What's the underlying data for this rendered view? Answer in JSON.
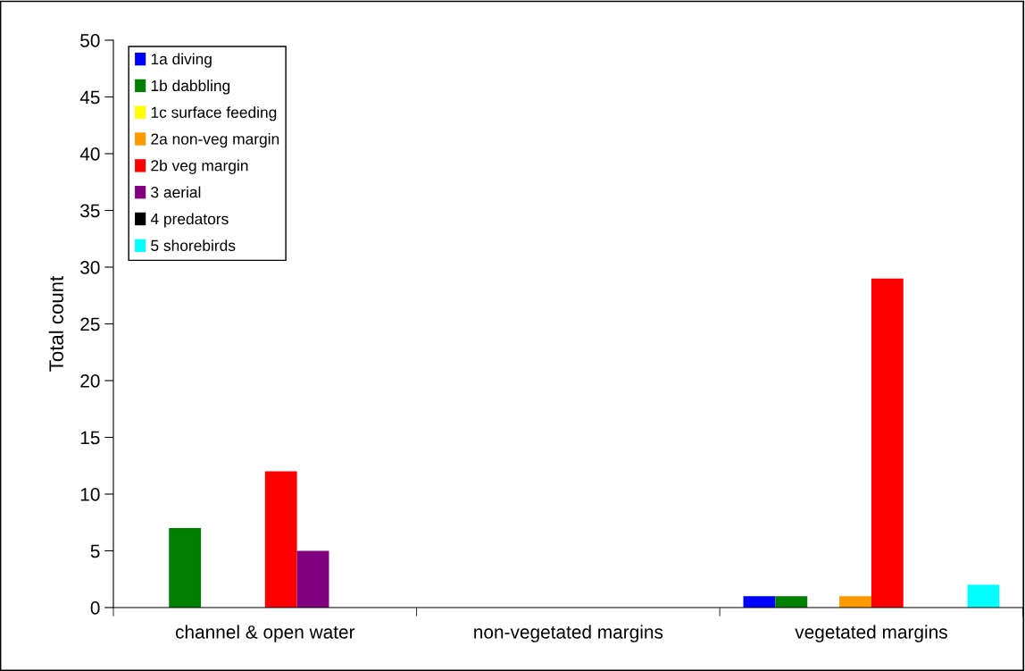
{
  "chart_data": {
    "type": "bar",
    "ylabel": "Total count",
    "categories": [
      "channel & open water",
      "non-vegetated margins",
      "vegetated margins"
    ],
    "series": [
      {
        "name": "1a diving",
        "color": "#0000ff",
        "values": [
          0,
          0,
          1
        ]
      },
      {
        "name": "1b dabbling",
        "color": "#008000",
        "values": [
          7,
          0,
          1
        ]
      },
      {
        "name": "1c surface feeding",
        "color": "#ffff00",
        "values": [
          0,
          0,
          0
        ]
      },
      {
        "name": "2a non-veg margin",
        "color": "#ff9900",
        "values": [
          0,
          0,
          1
        ]
      },
      {
        "name": "2b veg margin",
        "color": "#ff0000",
        "values": [
          12,
          0,
          29
        ]
      },
      {
        "name": "3 aerial",
        "color": "#800080",
        "values": [
          5,
          0,
          0
        ]
      },
      {
        "name": "4 predators",
        "color": "#000000",
        "values": [
          0,
          0,
          0
        ]
      },
      {
        "name": "5 shorebirds",
        "color": "#00ffff",
        "values": [
          0,
          0,
          2
        ]
      }
    ],
    "ylim": [
      0,
      50
    ],
    "yticks": [
      0,
      5,
      10,
      15,
      20,
      25,
      30,
      35,
      40,
      45,
      50
    ],
    "grid": false,
    "legend": "top left"
  }
}
